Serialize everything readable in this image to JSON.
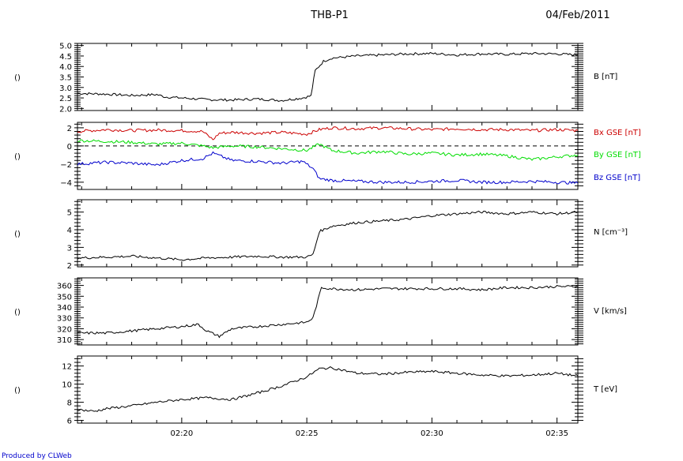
{
  "header": {
    "spacecraft": "THB-P1",
    "date": "04/Feb/2011"
  },
  "credit": "Produced by CLWeb",
  "x_axis": {
    "tick_labels": [
      "02:20",
      "02:25",
      "02:30",
      "02:35"
    ],
    "start": "02:15:50",
    "end": "02:35:50"
  },
  "chart_data": [
    {
      "type": "line",
      "left_label": "()",
      "ylim": [
        1.9,
        5.1
      ],
      "yticks": [
        2.0,
        2.5,
        3.0,
        3.5,
        4.0,
        4.5,
        5.0
      ],
      "ytick_labels": [
        "2.0",
        "2.5",
        "3.0",
        "3.5",
        "4.0",
        "4.5",
        "5.0"
      ],
      "series": [
        {
          "name": "B [nT]",
          "color": "#000000",
          "x": [
            "02:15:50",
            "02:17:00",
            "02:18:00",
            "02:19:00",
            "02:19:20",
            "02:20:00",
            "02:21:00",
            "02:22:00",
            "02:23:00",
            "02:24:00",
            "02:24:50",
            "02:25:10",
            "02:25:20",
            "02:25:40",
            "02:26:00",
            "02:27:00",
            "02:28:00",
            "02:29:00",
            "02:30:00",
            "02:31:00",
            "02:32:00",
            "02:33:00",
            "02:34:00",
            "02:35:00",
            "02:35:50"
          ],
          "y": [
            2.72,
            2.68,
            2.62,
            2.66,
            2.55,
            2.5,
            2.42,
            2.4,
            2.45,
            2.38,
            2.5,
            2.6,
            3.8,
            4.25,
            4.4,
            4.5,
            4.55,
            4.6,
            4.62,
            4.55,
            4.6,
            4.58,
            4.62,
            4.6,
            4.55
          ]
        }
      ]
    },
    {
      "type": "line",
      "left_label": "()",
      "ylim": [
        -4.8,
        2.6
      ],
      "yticks": [
        -4,
        -2,
        0,
        2
      ],
      "ytick_labels": [
        "−4",
        "−2",
        "0",
        "2"
      ],
      "zero_line": true,
      "series": [
        {
          "name": "Bx GSE [nT]",
          "color": "#cc0000",
          "x": [
            "02:15:50",
            "02:17:00",
            "02:18:00",
            "02:19:00",
            "02:20:00",
            "02:20:50",
            "02:21:15",
            "02:21:30",
            "02:22:00",
            "02:23:00",
            "02:24:00",
            "02:25:00",
            "02:25:30",
            "02:26:00",
            "02:27:00",
            "02:28:00",
            "02:29:00",
            "02:30:00",
            "02:31:00",
            "02:32:00",
            "02:33:00",
            "02:34:00",
            "02:35:00",
            "02:35:50"
          ],
          "y": [
            1.6,
            1.8,
            1.7,
            1.75,
            1.7,
            1.6,
            0.7,
            1.4,
            1.5,
            1.4,
            1.5,
            1.3,
            1.8,
            2.0,
            1.9,
            2.0,
            1.9,
            1.8,
            1.9,
            1.8,
            1.8,
            1.7,
            1.8,
            1.7
          ]
        },
        {
          "name": "By GSE [nT]",
          "color": "#00dd00",
          "x": [
            "02:15:50",
            "02:17:00",
            "02:18:00",
            "02:19:00",
            "02:20:00",
            "02:20:50",
            "02:21:15",
            "02:22:00",
            "02:23:00",
            "02:24:00",
            "02:25:00",
            "02:25:30",
            "02:26:00",
            "02:27:00",
            "02:28:00",
            "02:29:00",
            "02:30:00",
            "02:31:00",
            "02:32:00",
            "02:33:00",
            "02:34:00",
            "02:35:00",
            "02:35:50"
          ],
          "y": [
            0.6,
            0.5,
            0.4,
            0.2,
            0.3,
            0.0,
            -0.2,
            0.0,
            -0.1,
            -0.3,
            -0.5,
            0.2,
            -0.5,
            -0.8,
            -0.6,
            -0.9,
            -0.8,
            -1.0,
            -0.9,
            -1.1,
            -1.5,
            -1.2,
            -1.0
          ]
        },
        {
          "name": "Bz GSE [nT]",
          "color": "#0000cc",
          "x": [
            "02:15:50",
            "02:17:00",
            "02:18:00",
            "02:19:00",
            "02:20:00",
            "02:20:50",
            "02:21:15",
            "02:22:00",
            "02:23:00",
            "02:24:00",
            "02:24:50",
            "02:25:15",
            "02:25:30",
            "02:26:00",
            "02:27:00",
            "02:28:00",
            "02:29:00",
            "02:30:00",
            "02:31:00",
            "02:32:00",
            "02:33:00",
            "02:34:00",
            "02:35:00",
            "02:35:50"
          ],
          "y": [
            -2.0,
            -1.8,
            -1.9,
            -2.1,
            -1.6,
            -1.4,
            -0.8,
            -1.6,
            -1.7,
            -1.9,
            -1.7,
            -2.5,
            -3.6,
            -3.8,
            -3.9,
            -4.0,
            -4.0,
            -3.9,
            -3.8,
            -4.0,
            -4.0,
            -3.9,
            -4.0,
            -4.1
          ]
        }
      ]
    },
    {
      "type": "line",
      "left_label": "()",
      "ylim": [
        1.9,
        5.7
      ],
      "yticks": [
        2,
        3,
        4,
        5
      ],
      "ytick_labels": [
        "2",
        "3",
        "4",
        "5"
      ],
      "series": [
        {
          "name": "N [cm⁻³]",
          "color": "#000000",
          "x": [
            "02:15:50",
            "02:17:00",
            "02:18:00",
            "02:19:00",
            "02:20:00",
            "02:21:00",
            "02:22:00",
            "02:23:00",
            "02:24:00",
            "02:25:00",
            "02:25:15",
            "02:25:30",
            "02:26:00",
            "02:27:00",
            "02:28:00",
            "02:29:00",
            "02:30:00",
            "02:31:00",
            "02:32:00",
            "02:33:00",
            "02:34:00",
            "02:35:00",
            "02:35:50"
          ],
          "y": [
            2.4,
            2.45,
            2.5,
            2.4,
            2.3,
            2.4,
            2.45,
            2.5,
            2.45,
            2.45,
            2.6,
            3.9,
            4.2,
            4.4,
            4.5,
            4.6,
            4.8,
            4.9,
            5.0,
            4.9,
            5.0,
            4.9,
            5.0
          ]
        }
      ]
    },
    {
      "type": "line",
      "left_label": "()",
      "ylim": [
        305,
        367
      ],
      "yticks": [
        310,
        320,
        330,
        340,
        350,
        360
      ],
      "ytick_labels": [
        "310",
        "320",
        "330",
        "340",
        "350",
        "360"
      ],
      "series": [
        {
          "name": "V [km/s]",
          "color": "#000000",
          "x": [
            "02:15:50",
            "02:17:00",
            "02:18:00",
            "02:19:00",
            "02:20:00",
            "02:20:40",
            "02:21:00",
            "02:21:30",
            "02:22:00",
            "02:23:00",
            "02:24:00",
            "02:25:00",
            "02:25:15",
            "02:25:35",
            "02:26:00",
            "02:27:00",
            "02:28:00",
            "02:29:00",
            "02:30:00",
            "02:31:00",
            "02:32:00",
            "02:33:00",
            "02:34:00",
            "02:35:00",
            "02:35:50"
          ],
          "y": [
            316,
            316,
            318,
            320,
            322,
            324,
            318,
            313,
            320,
            322,
            324,
            326,
            330,
            358,
            357,
            356,
            357,
            357,
            357,
            357,
            356,
            358,
            358,
            359,
            359
          ]
        }
      ]
    },
    {
      "type": "line",
      "left_label": "()",
      "ylim": [
        5.7,
        13.1
      ],
      "yticks": [
        6,
        8,
        10,
        12
      ],
      "ytick_labels": [
        "6",
        "8",
        "10",
        "12"
      ],
      "series": [
        {
          "name": "T [eV]",
          "color": "#000000",
          "x": [
            "02:15:50",
            "02:16:30",
            "02:17:00",
            "02:18:00",
            "02:19:00",
            "02:20:00",
            "02:21:00",
            "02:22:00",
            "02:23:00",
            "02:24:00",
            "02:25:00",
            "02:25:30",
            "02:26:00",
            "02:27:00",
            "02:28:00",
            "02:29:00",
            "02:30:00",
            "02:31:00",
            "02:32:00",
            "02:33:00",
            "02:34:00",
            "02:35:00",
            "02:35:50"
          ],
          "y": [
            7.2,
            7.0,
            7.3,
            7.6,
            8.0,
            8.3,
            8.5,
            8.3,
            9.0,
            9.8,
            10.8,
            11.7,
            11.8,
            11.2,
            11.1,
            11.3,
            11.4,
            11.2,
            11.0,
            10.9,
            11.0,
            11.2,
            10.9
          ]
        }
      ]
    }
  ]
}
